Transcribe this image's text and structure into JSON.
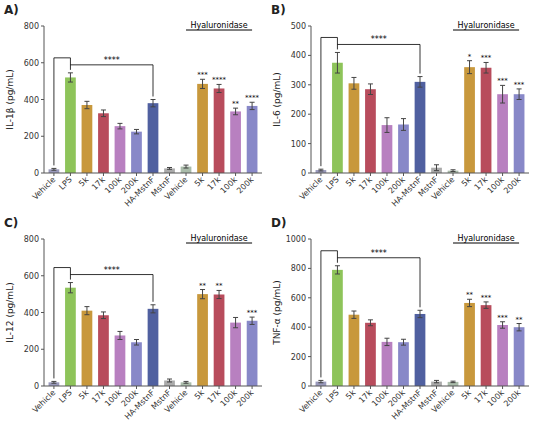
{
  "chart_data": [
    {
      "type": "bar",
      "title": "A)",
      "ylabel": "IL-1β (pg/mL)",
      "categories": [
        "Vehicle",
        "LPS",
        "5k",
        "17k",
        "100k",
        "200k",
        "HA-MstnF",
        "MstnF",
        "Vehicle",
        "5k",
        "17k",
        "100k",
        "200k"
      ],
      "values": [
        20,
        520,
        370,
        325,
        255,
        225,
        380,
        25,
        35,
        485,
        460,
        335,
        365
      ],
      "errors": [
        5,
        25,
        20,
        18,
        15,
        12,
        20,
        5,
        8,
        25,
        22,
        18,
        20
      ],
      "colors": [
        "#9999bb",
        "#8ec45a",
        "#c8983c",
        "#b84c5c",
        "#b880c0",
        "#8888c8",
        "#5060a0",
        "#aaaaaa",
        "#aabcaa",
        "#c8983c",
        "#b84c5c",
        "#b880c0",
        "#8888c8"
      ],
      "ylim": [
        0,
        800
      ],
      "yticks": [
        0,
        200,
        400,
        600,
        800
      ],
      "grid": false,
      "annotations": [
        {
          "text": "****",
          "bars": [
            0,
            1,
            6
          ]
        },
        {
          "text": "***",
          "bar": 9
        },
        {
          "text": "****",
          "bar": 10
        },
        {
          "text": "**",
          "bar": 11
        },
        {
          "text": "****",
          "bar": 12
        },
        {
          "text": "Hyaluronidase",
          "span": [
            8,
            12
          ]
        }
      ]
    },
    {
      "type": "bar",
      "title": "B)",
      "ylabel": "IL-6 (pg/mL)",
      "categories": [
        "Vehicle",
        "LPS",
        "5k",
        "17k",
        "100k",
        "200k",
        "HA-MstnF",
        "MstnF",
        "Vehicle",
        "5k",
        "17k",
        "100k",
        "200k"
      ],
      "values": [
        10,
        375,
        305,
        285,
        163,
        165,
        310,
        18,
        8,
        360,
        358,
        268,
        268
      ],
      "errors": [
        3,
        35,
        20,
        18,
        25,
        20,
        18,
        10,
        3,
        22,
        18,
        30,
        18
      ],
      "colors": [
        "#9999bb",
        "#8ec45a",
        "#c8983c",
        "#b84c5c",
        "#b880c0",
        "#8888c8",
        "#5060a0",
        "#aaaaaa",
        "#aabcaa",
        "#c8983c",
        "#b84c5c",
        "#b880c0",
        "#8888c8"
      ],
      "ylim": [
        0,
        500
      ],
      "yticks": [
        0,
        100,
        200,
        300,
        400,
        500
      ],
      "grid": false,
      "annotations": [
        {
          "text": "****",
          "bars": [
            0,
            1,
            6
          ]
        },
        {
          "text": "*",
          "bar": 9
        },
        {
          "text": "***",
          "bar": 10
        },
        {
          "text": "***",
          "bar": 11
        },
        {
          "text": "***",
          "bar": 12
        },
        {
          "text": "Hyaluronidase",
          "span": [
            8,
            12
          ]
        }
      ]
    },
    {
      "type": "bar",
      "title": "C)",
      "ylabel": "IL-12 (pg/mL)",
      "categories": [
        "Vehicle",
        "LPS",
        "5k",
        "17k",
        "100k",
        "200k",
        "HA-MstnF",
        "MstnF",
        "Vehicle",
        "5k",
        "17k",
        "100k",
        "200k"
      ],
      "values": [
        20,
        535,
        410,
        385,
        275,
        238,
        420,
        30,
        20,
        500,
        498,
        345,
        355
      ],
      "errors": [
        5,
        28,
        22,
        18,
        22,
        15,
        22,
        8,
        5,
        25,
        22,
        28,
        20
      ],
      "colors": [
        "#9999bb",
        "#8ec45a",
        "#c8983c",
        "#b84c5c",
        "#b880c0",
        "#8888c8",
        "#5060a0",
        "#aaaaaa",
        "#aabcaa",
        "#c8983c",
        "#b84c5c",
        "#b880c0",
        "#8888c8"
      ],
      "ylim": [
        0,
        800
      ],
      "yticks": [
        0,
        200,
        400,
        600,
        800
      ],
      "grid": false,
      "annotations": [
        {
          "text": "****",
          "bars": [
            0,
            1,
            6
          ]
        },
        {
          "text": "**",
          "bar": 9
        },
        {
          "text": "**",
          "bar": 10
        },
        {
          "text": "***",
          "bar": 12
        },
        {
          "text": "Hyaluronidase",
          "span": [
            8,
            12
          ]
        }
      ]
    },
    {
      "type": "bar",
      "title": "D)",
      "ylabel": "TNF-α (pg/mL)",
      "categories": [
        "Vehicle",
        "LPS",
        "5k",
        "17k",
        "100k",
        "200k",
        "HA-MstnF",
        "MstnF",
        "Vehicle",
        "5k",
        "17k",
        "100k",
        "200k"
      ],
      "values": [
        30,
        790,
        485,
        430,
        300,
        298,
        490,
        30,
        28,
        565,
        550,
        415,
        400
      ],
      "errors": [
        8,
        28,
        25,
        20,
        25,
        20,
        25,
        8,
        5,
        25,
        22,
        22,
        25
      ],
      "colors": [
        "#9999bb",
        "#8ec45a",
        "#c8983c",
        "#b84c5c",
        "#b880c0",
        "#8888c8",
        "#5060a0",
        "#aaaaaa",
        "#aabcaa",
        "#c8983c",
        "#b84c5c",
        "#b880c0",
        "#8888c8"
      ],
      "ylim": [
        0,
        1000
      ],
      "yticks": [
        0,
        200,
        400,
        600,
        800,
        1000
      ],
      "grid": false,
      "annotations": [
        {
          "text": "****",
          "bars": [
            0,
            1,
            6
          ]
        },
        {
          "text": "**",
          "bar": 9
        },
        {
          "text": "***",
          "bar": 10
        },
        {
          "text": "***",
          "bar": 11
        },
        {
          "text": "**",
          "bar": 12
        },
        {
          "text": "Hyaluronidase",
          "span": [
            8,
            12
          ]
        }
      ]
    }
  ]
}
